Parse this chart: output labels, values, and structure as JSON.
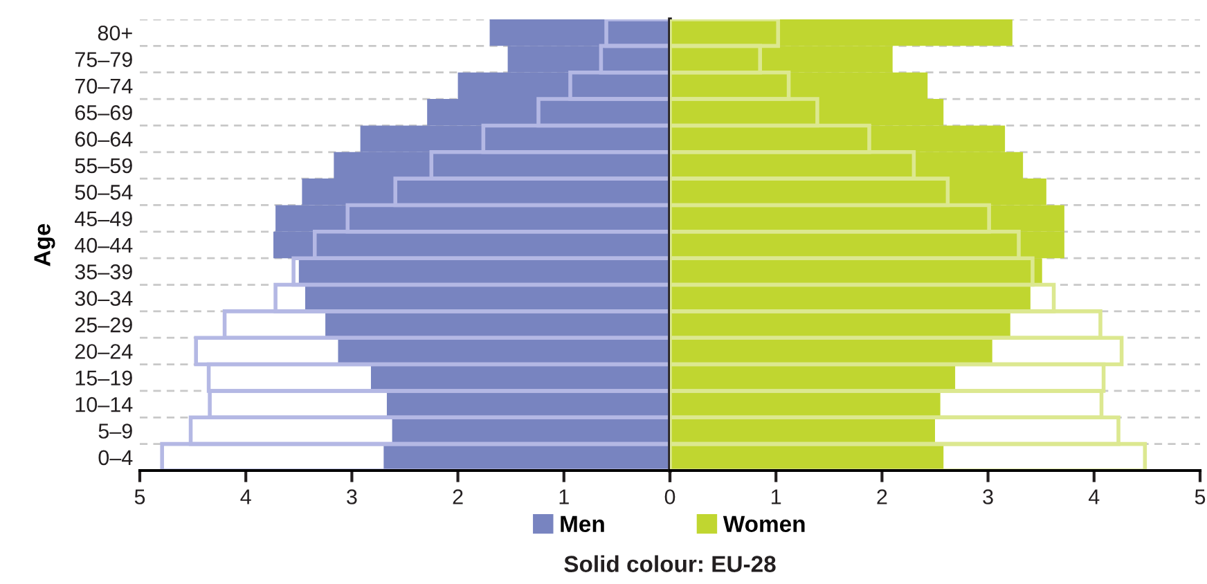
{
  "chart_data": [
    {
      "type": "bar",
      "orientation": "horizontal",
      "ylabel": "Age",
      "categories": [
        "80+",
        "75–79",
        "70–74",
        "65–69",
        "60–64",
        "55–59",
        "50–54",
        "45–49",
        "40–44",
        "35–39",
        "30–34",
        "25–29",
        "20–24",
        "15–19",
        "10–14",
        "5–9",
        "0–4"
      ],
      "series": [
        {
          "name": "Men",
          "color": "#7884c0",
          "values": [
            1.7,
            1.53,
            2.0,
            2.29,
            2.92,
            3.17,
            3.47,
            3.72,
            3.74,
            3.5,
            3.44,
            3.25,
            3.13,
            2.82,
            2.67,
            2.62,
            2.7
          ]
        },
        {
          "color": "#b4b8e4",
          "values": [
            0.6,
            0.65,
            0.94,
            1.24,
            1.76,
            2.25,
            2.59,
            3.04,
            3.35,
            3.55,
            3.72,
            4.2,
            4.47,
            4.35,
            4.34,
            4.52,
            4.79
          ]
        }
      ],
      "xlim": [
        5,
        0
      ],
      "xticks": [
        5,
        4,
        3,
        2,
        1,
        0
      ],
      "ref_lines": [
        {
          "axis": "x",
          "value": 0,
          "color": "#231f20"
        }
      ],
      "grid": "y",
      "legend": "bottom"
    },
    {
      "type": "bar",
      "orientation": "horizontal",
      "categories": [
        null,
        null,
        null,
        null,
        null,
        null,
        null,
        null,
        null,
        null,
        null,
        null,
        null,
        null,
        null,
        null,
        null
      ],
      "series": [
        {
          "name": "Women",
          "color": "#c0d630",
          "values": [
            3.23,
            2.1,
            2.43,
            2.58,
            3.16,
            3.33,
            3.55,
            3.72,
            3.72,
            3.51,
            3.4,
            3.21,
            3.04,
            2.69,
            2.55,
            2.5,
            2.58
          ]
        },
        {
          "color": "#dce890",
          "values": [
            1.02,
            0.85,
            1.12,
            1.39,
            1.88,
            2.3,
            2.62,
            3.01,
            3.29,
            3.42,
            3.62,
            4.06,
            4.26,
            4.09,
            4.07,
            4.23,
            4.48
          ]
        }
      ],
      "xlim": [
        0,
        5
      ],
      "xticks": [
        {
          "value": 0,
          "label": null
        },
        1,
        2,
        3,
        4,
        5
      ],
      "tick_labels": "x",
      "grid": "y",
      "legend": "bottom",
      "annotations": [
        "Solid colour: EU-28"
      ]
    }
  ]
}
